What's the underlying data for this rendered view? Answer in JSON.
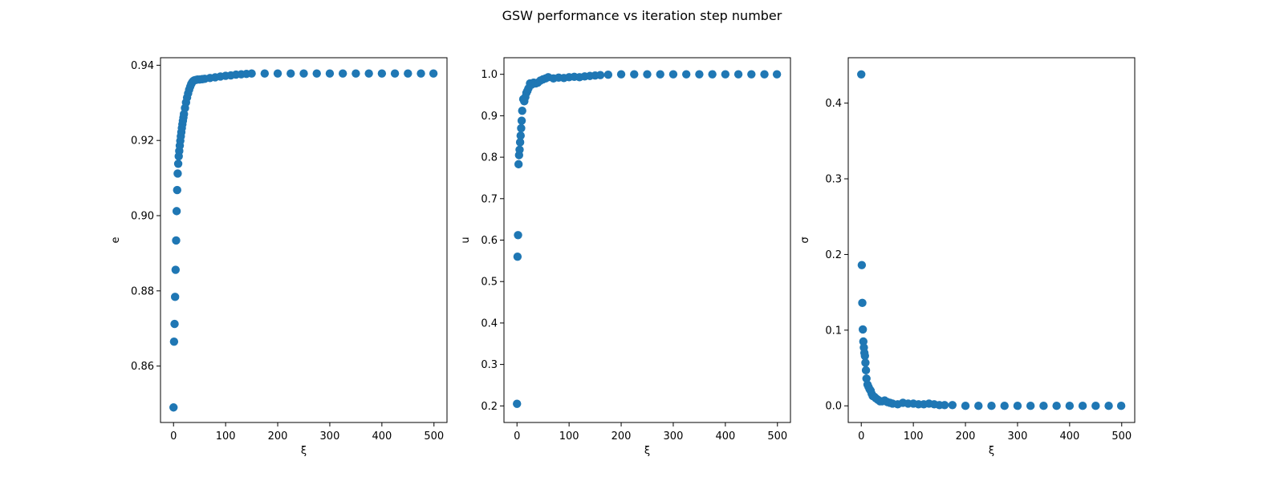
{
  "figure": {
    "suptitle": "GSW performance vs iteration step number"
  },
  "colors": {
    "marker": "#1f77b4",
    "axes": "#000000",
    "background": "#ffffff"
  },
  "chart_data": [
    {
      "type": "scatter",
      "title": "",
      "xlabel": "ξ",
      "ylabel": "e",
      "xlim": [
        -25,
        525
      ],
      "ylim": [
        0.845,
        0.942
      ],
      "xticks": [
        0,
        100,
        200,
        300,
        400,
        500
      ],
      "xtick_labels": [
        "0",
        "100",
        "200",
        "300",
        "400",
        "500"
      ],
      "yticks": [
        0.86,
        0.88,
        0.9,
        0.92,
        0.94
      ],
      "ytick_labels": [
        "0.86",
        "0.88",
        "0.90",
        "0.92",
        "0.94"
      ],
      "grid": false,
      "legend": "none",
      "series": [
        {
          "x": [
            0,
            1,
            2,
            3,
            4,
            5,
            6,
            7,
            8,
            9,
            10,
            11,
            12,
            13,
            14,
            15,
            16,
            17,
            18,
            19,
            20,
            22,
            24,
            26,
            28,
            30,
            32,
            34,
            36,
            38,
            40,
            43,
            46,
            50,
            55,
            60,
            70,
            80,
            90,
            100,
            110,
            120,
            130,
            140,
            150,
            175,
            200,
            225,
            250,
            275,
            300,
            325,
            350,
            375,
            400,
            425,
            450,
            475,
            499
          ],
          "y": [
            0.849,
            0.8665,
            0.8712,
            0.8784,
            0.8856,
            0.8934,
            0.9012,
            0.9068,
            0.9112,
            0.9138,
            0.9158,
            0.9172,
            0.9186,
            0.9199,
            0.9211,
            0.9222,
            0.9233,
            0.9243,
            0.9252,
            0.9261,
            0.927,
            0.9286,
            0.9301,
            0.9314,
            0.9325,
            0.9335,
            0.9343,
            0.935,
            0.9355,
            0.9358,
            0.936,
            0.9361,
            0.9362,
            0.9362,
            0.9363,
            0.9364,
            0.9366,
            0.9368,
            0.937,
            0.9372,
            0.9373,
            0.9375,
            0.9376,
            0.9377,
            0.9378,
            0.9378,
            0.9378,
            0.9378,
            0.9378,
            0.9378,
            0.9378,
            0.9378,
            0.9378,
            0.9378,
            0.9378,
            0.9378,
            0.9378,
            0.9378,
            0.9378
          ]
        }
      ]
    },
    {
      "type": "scatter",
      "title": "",
      "xlabel": "ξ",
      "ylabel": "u",
      "xlim": [
        -25,
        525
      ],
      "ylim": [
        0.16,
        1.04
      ],
      "xticks": [
        0,
        100,
        200,
        300,
        400,
        500
      ],
      "xtick_labels": [
        "0",
        "100",
        "200",
        "300",
        "400",
        "500"
      ],
      "yticks": [
        0.2,
        0.3,
        0.4,
        0.5,
        0.6,
        0.7,
        0.8,
        0.9,
        1.0
      ],
      "ytick_labels": [
        "0.2",
        "0.3",
        "0.4",
        "0.5",
        "0.6",
        "0.7",
        "0.8",
        "0.9",
        "1.0"
      ],
      "grid": false,
      "legend": "none",
      "series": [
        {
          "x": [
            0,
            1,
            2,
            3,
            4,
            5,
            6,
            7,
            8,
            9,
            10,
            12,
            14,
            16,
            18,
            20,
            22,
            25,
            28,
            32,
            36,
            40,
            45,
            50,
            55,
            60,
            70,
            80,
            90,
            100,
            110,
            120,
            130,
            140,
            150,
            160,
            175,
            200,
            225,
            250,
            275,
            300,
            325,
            350,
            375,
            400,
            425,
            450,
            475,
            499
          ],
          "y": [
            0.205,
            0.56,
            0.612,
            0.783,
            0.805,
            0.818,
            0.836,
            0.852,
            0.87,
            0.888,
            0.912,
            0.94,
            0.935,
            0.945,
            0.955,
            0.96,
            0.966,
            0.978,
            0.975,
            0.98,
            0.978,
            0.98,
            0.985,
            0.988,
            0.99,
            0.993,
            0.99,
            0.992,
            0.991,
            0.993,
            0.994,
            0.993,
            0.995,
            0.996,
            0.997,
            0.998,
            0.999,
            1.0,
            1.0,
            1.0,
            1.0,
            1.0,
            1.0,
            1.0,
            1.0,
            1.0,
            1.0,
            1.0,
            1.0,
            1.0
          ]
        }
      ]
    },
    {
      "type": "scatter",
      "title": "",
      "xlabel": "ξ",
      "ylabel": "σ",
      "xlim": [
        -25,
        525
      ],
      "ylim": [
        -0.022,
        0.46
      ],
      "xticks": [
        0,
        100,
        200,
        300,
        400,
        500
      ],
      "xtick_labels": [
        "0",
        "100",
        "200",
        "300",
        "400",
        "500"
      ],
      "yticks": [
        0.0,
        0.1,
        0.2,
        0.3,
        0.4
      ],
      "ytick_labels": [
        "0.0",
        "0.1",
        "0.2",
        "0.3",
        "0.4"
      ],
      "grid": false,
      "legend": "none",
      "series": [
        {
          "x": [
            0,
            1,
            2,
            3,
            4,
            5,
            6,
            7,
            8,
            9,
            10,
            12,
            14,
            16,
            18,
            20,
            22,
            25,
            28,
            32,
            36,
            40,
            45,
            50,
            55,
            60,
            70,
            80,
            90,
            100,
            110,
            120,
            130,
            140,
            150,
            160,
            175,
            200,
            225,
            250,
            275,
            300,
            325,
            350,
            375,
            400,
            425,
            450,
            475,
            499
          ],
          "y": [
            0.438,
            0.186,
            0.136,
            0.101,
            0.085,
            0.077,
            0.07,
            0.066,
            0.057,
            0.047,
            0.036,
            0.028,
            0.025,
            0.022,
            0.02,
            0.016,
            0.013,
            0.012,
            0.01,
            0.008,
            0.006,
            0.006,
            0.007,
            0.005,
            0.004,
            0.003,
            0.002,
            0.004,
            0.003,
            0.003,
            0.002,
            0.002,
            0.003,
            0.002,
            0.001,
            0.001,
            0.001,
            0.0,
            0.0,
            0.0,
            0.0,
            0.0,
            0.0,
            0.0,
            0.0,
            0.0,
            0.0,
            0.0,
            0.0,
            0.0
          ]
        }
      ]
    }
  ]
}
